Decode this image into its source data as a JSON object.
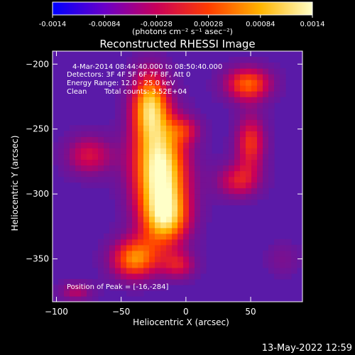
{
  "chart_data": {
    "type": "heatmap",
    "title": "Reconstructed RHESSI Image",
    "xlabel": "Heliocentric X (arcsec)",
    "ylabel": "Heliocentric Y (arcsec)",
    "xlim": [
      -103,
      90
    ],
    "ylim": [
      -383,
      -190
    ],
    "x_ticks": [
      -100,
      -50,
      0,
      50
    ],
    "y_ticks": [
      -200,
      -250,
      -300,
      -350
    ],
    "colorbar": {
      "range": [
        -0.0014,
        0.0014
      ],
      "ticks": [
        "-0.0014",
        "-0.00084",
        "-0.00028",
        "0.00028",
        "0.00084",
        "0.0014"
      ],
      "unit_label": "(photons cm⁻² s⁻¹ asec⁻²)",
      "colormap_stops": [
        "#0000ff",
        "#6a00c8",
        "#c8005a",
        "#ff3c00",
        "#ffb400",
        "#ffffc8"
      ]
    },
    "annotations": {
      "time_range": "4-Mar-2014 08:44:40.000 to 08:50:40.000",
      "detectors": "Detectors: 3F 4F 5F 6F 7F 8F, Att 0",
      "energy_range": "Energy Range: 12.0 - 25.0 keV",
      "method": "Clean",
      "total_counts": "Total counts: 3.52E+04",
      "peak": "Position of Peak = [-16,-284]"
    },
    "sources": [
      {
        "x": -20,
        "y": -282,
        "sx": 16,
        "sy": 28,
        "amp": 1.0
      },
      {
        "x": -28,
        "y": -230,
        "sx": 11,
        "sy": 20,
        "amp": 0.75
      },
      {
        "x": -40,
        "y": -350,
        "sx": 14,
        "sy": 12,
        "amp": 0.7
      },
      {
        "x": -15,
        "y": -320,
        "sx": 14,
        "sy": 16,
        "amp": 0.6
      },
      {
        "x": 48,
        "y": -215,
        "sx": 14,
        "sy": 10,
        "amp": 0.65
      },
      {
        "x": 50,
        "y": -260,
        "sx": 9,
        "sy": 16,
        "amp": 0.55
      },
      {
        "x": 40,
        "y": -290,
        "sx": 13,
        "sy": 10,
        "amp": 0.45
      },
      {
        "x": -75,
        "y": -270,
        "sx": 14,
        "sy": 12,
        "amp": 0.45
      },
      {
        "x": -5,
        "y": -355,
        "sx": 10,
        "sy": 8,
        "amp": 0.4
      },
      {
        "x": 0,
        "y": -250,
        "sx": 9,
        "sy": 8,
        "amp": 0.3
      },
      {
        "x": -85,
        "y": -375,
        "sx": 10,
        "sy": 6,
        "amp": 0.35
      },
      {
        "x": 75,
        "y": -350,
        "sx": 10,
        "sy": 10,
        "amp": 0.2
      }
    ]
  },
  "footer": {
    "timestamp": "13-May-2022 12:59"
  }
}
